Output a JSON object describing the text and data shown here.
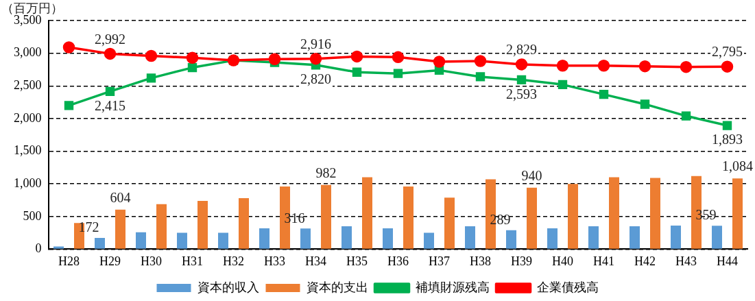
{
  "chart_data": {
    "type": "bar",
    "ylabel": "（百万円）",
    "categories": [
      "H28",
      "H29",
      "H30",
      "H31",
      "H32",
      "H33",
      "H34",
      "H35",
      "H36",
      "H37",
      "H38",
      "H39",
      "H40",
      "H41",
      "H42",
      "H43",
      "H44"
    ],
    "series": [
      {
        "name": "資本的収入",
        "color": "#5b9bd5",
        "values": [
          40,
          172,
          260,
          250,
          250,
          320,
          316,
          350,
          320,
          250,
          350,
          289,
          320,
          350,
          350,
          360,
          359
        ],
        "value_labels": [
          null,
          "172",
          null,
          null,
          null,
          null,
          "316",
          null,
          null,
          null,
          null,
          "289",
          null,
          null,
          null,
          null,
          "359"
        ]
      },
      {
        "name": "資本的支出",
        "color": "#ed7d31",
        "values": [
          400,
          604,
          690,
          740,
          780,
          960,
          982,
          1100,
          960,
          790,
          1070,
          940,
          1000,
          1100,
          1090,
          1120,
          1084
        ],
        "value_labels": [
          null,
          "604",
          null,
          null,
          null,
          null,
          "982",
          null,
          null,
          null,
          null,
          "940",
          null,
          null,
          null,
          null,
          "1,084"
        ]
      },
      {
        "name": "補填財源残高",
        "type": "line",
        "color": "#00b050",
        "marker": "square",
        "values": [
          2200,
          2415,
          2620,
          2780,
          2890,
          2860,
          2820,
          2710,
          2690,
          2740,
          2640,
          2593,
          2520,
          2370,
          2220,
          2040,
          1893
        ],
        "value_labels": [
          null,
          "2,415",
          null,
          null,
          null,
          null,
          "2,820",
          null,
          null,
          null,
          null,
          "2,593",
          null,
          null,
          null,
          null,
          "1,893"
        ]
      },
      {
        "name": "企業債残高",
        "type": "line",
        "color": "#ff0000",
        "marker": "circle",
        "values": [
          3090,
          2992,
          2960,
          2930,
          2890,
          2910,
          2916,
          2950,
          2940,
          2870,
          2880,
          2829,
          2810,
          2810,
          2800,
          2790,
          2795
        ],
        "value_labels": [
          null,
          "2,992",
          null,
          null,
          null,
          null,
          "2,916",
          null,
          null,
          null,
          null,
          "2,829",
          null,
          null,
          null,
          null,
          "2,795"
        ]
      }
    ],
    "ylim": [
      0,
      3500
    ],
    "yticks": [
      0,
      500,
      {
        "value": 1000,
        "label": "1,000"
      },
      {
        "value": 1500,
        "label": "1,500"
      },
      {
        "value": 2000,
        "label": "2,000"
      },
      {
        "value": 2500,
        "label": "2,500"
      },
      {
        "value": 3000,
        "label": "3,000"
      },
      {
        "value": 3500,
        "label": "3,500"
      }
    ],
    "grid": "y",
    "legend": "bottom"
  }
}
